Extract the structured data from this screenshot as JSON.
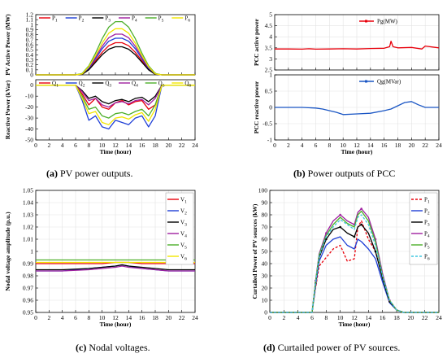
{
  "captions": [
    {
      "letter": "(a)",
      "text": " PV power outputs."
    },
    {
      "letter": "(b)",
      "text": " Power outputs of PCC"
    },
    {
      "letter": "(c)",
      "text": " Nodal voltages."
    },
    {
      "letter": "(d)",
      "text": " Curtailed power of PV sources."
    }
  ],
  "xaxis": {
    "label": "Time (hour)",
    "ticks": [
      "0",
      "2",
      "4",
      "6",
      "8",
      "10",
      "12",
      "14",
      "16",
      "18",
      "20",
      "22",
      "24"
    ]
  },
  "colors": {
    "red": "#e8000b",
    "blue": "#1f3fd6",
    "black": "#000000",
    "purple": "#a020a0",
    "green": "#4daf2a",
    "yellow": "#f2e600",
    "pcc_red": "#e8000b",
    "pcc_blue": "#1a56c4",
    "cyan": "#3fc7e0"
  },
  "chart_data": [
    {
      "id": "a_top",
      "type": "line",
      "ylabel": "PV Active Power (MW)",
      "xlim": [
        0,
        24
      ],
      "ylim": [
        0,
        1.2
      ],
      "yticks": [
        "0",
        "0.1",
        "0.2",
        "0.3",
        "0.4",
        "0.5",
        "0.6",
        "0.7",
        "0.8",
        "0.9",
        "1",
        "1.1",
        "1.2"
      ],
      "legend": [
        "P1",
        "P2",
        "P3",
        "P4",
        "P5",
        "P6"
      ],
      "x": [
        0,
        6,
        7,
        8,
        9,
        10,
        11,
        12,
        13,
        14,
        15,
        16,
        17,
        18,
        19,
        24
      ],
      "series": [
        {
          "name": "P1",
          "color": "red",
          "values": [
            0,
            0,
            0.02,
            0.12,
            0.28,
            0.45,
            0.58,
            0.64,
            0.64,
            0.58,
            0.45,
            0.28,
            0.12,
            0.02,
            0,
            0
          ]
        },
        {
          "name": "P2",
          "color": "blue",
          "values": [
            0,
            0,
            0.02,
            0.13,
            0.32,
            0.52,
            0.67,
            0.73,
            0.73,
            0.67,
            0.52,
            0.32,
            0.13,
            0.02,
            0,
            0
          ]
        },
        {
          "name": "P3",
          "color": "black",
          "values": [
            0,
            0,
            0.01,
            0.1,
            0.25,
            0.4,
            0.51,
            0.56,
            0.56,
            0.51,
            0.4,
            0.25,
            0.1,
            0.01,
            0,
            0
          ]
        },
        {
          "name": "P4",
          "color": "purple",
          "values": [
            0,
            0,
            0.02,
            0.15,
            0.35,
            0.57,
            0.74,
            0.81,
            0.81,
            0.74,
            0.57,
            0.35,
            0.15,
            0.02,
            0,
            0
          ]
        },
        {
          "name": "P5",
          "color": "green",
          "values": [
            0,
            0,
            0.03,
            0.18,
            0.43,
            0.72,
            0.95,
            1.06,
            1.06,
            0.95,
            0.72,
            0.43,
            0.18,
            0.03,
            0,
            0
          ]
        },
        {
          "name": "P6",
          "color": "yellow",
          "values": [
            0,
            0,
            0.02,
            0.16,
            0.38,
            0.63,
            0.83,
            0.92,
            0.92,
            0.83,
            0.63,
            0.38,
            0.16,
            0.02,
            0,
            0
          ]
        }
      ]
    },
    {
      "id": "a_bot",
      "type": "line",
      "ylabel": "Reactive Power (kVar)",
      "xlim": [
        0,
        24
      ],
      "ylim": [
        -50,
        5
      ],
      "yticks": [
        "-50",
        "-40",
        "-30",
        "-20",
        "-10",
        "0"
      ],
      "legend": [
        "Q1",
        "Q2",
        "Q3",
        "Q4",
        "Q5",
        "Q6"
      ],
      "x": [
        0,
        6,
        7,
        8,
        9,
        10,
        11,
        12,
        13,
        14,
        15,
        16,
        17,
        18,
        19,
        24
      ],
      "series": [
        {
          "name": "Q1",
          "color": "red",
          "values": [
            0,
            0,
            -8,
            -18,
            -12,
            -20,
            -22,
            -16,
            -14,
            -18,
            -15,
            -14,
            -22,
            -18,
            0,
            0
          ]
        },
        {
          "name": "Q2",
          "color": "blue",
          "values": [
            0,
            0,
            -14,
            -32,
            -28,
            -38,
            -40,
            -32,
            -34,
            -36,
            -30,
            -28,
            -38,
            -28,
            0,
            0
          ]
        },
        {
          "name": "Q3",
          "color": "black",
          "values": [
            0,
            0,
            -5,
            -12,
            -10,
            -15,
            -17,
            -14,
            -13,
            -15,
            -12,
            -11,
            -15,
            -10,
            0,
            0
          ]
        },
        {
          "name": "Q4",
          "color": "purple",
          "values": [
            0,
            0,
            -6,
            -14,
            -12,
            -18,
            -20,
            -16,
            -15,
            -17,
            -14,
            -13,
            -18,
            -12,
            0,
            0
          ]
        },
        {
          "name": "Q5",
          "color": "green",
          "values": [
            0,
            0,
            -10,
            -22,
            -20,
            -28,
            -30,
            -26,
            -25,
            -27,
            -24,
            -22,
            -28,
            -18,
            0,
            0
          ]
        },
        {
          "name": "Q6",
          "color": "yellow",
          "values": [
            0,
            0,
            -12,
            -26,
            -24,
            -34,
            -36,
            -30,
            -29,
            -31,
            -27,
            -25,
            -33,
            -22,
            0,
            0
          ]
        }
      ]
    },
    {
      "id": "b_top",
      "type": "line",
      "ylabel": "PCC active power",
      "xlim": [
        0,
        24
      ],
      "ylim": [
        2.5,
        5
      ],
      "yticks": [
        "2.5",
        "3",
        "3.5",
        "4",
        "4.5",
        "5"
      ],
      "legend": [
        "Pg(MW)"
      ],
      "x": [
        0,
        2,
        4,
        5,
        6,
        8,
        10,
        12,
        14,
        16,
        16.8,
        17,
        17.3,
        18,
        20,
        21.5,
        22,
        24
      ],
      "series": [
        {
          "name": "Pg(MW)",
          "color": "pcc_red",
          "values": [
            3.45,
            3.45,
            3.44,
            3.46,
            3.44,
            3.45,
            3.46,
            3.45,
            3.47,
            3.48,
            3.55,
            3.8,
            3.55,
            3.5,
            3.52,
            3.45,
            3.58,
            3.5
          ]
        }
      ]
    },
    {
      "id": "b_bot",
      "type": "line",
      "ylabel": "PCC reactive power",
      "xlim": [
        0,
        24
      ],
      "ylim": [
        -1,
        1
      ],
      "yticks": [
        "-1",
        "-0.5",
        "0",
        "0.5",
        "1"
      ],
      "legend": [
        "Qg(MVar)"
      ],
      "x": [
        0,
        4,
        6,
        7,
        8,
        9,
        10,
        12,
        14,
        16,
        17,
        18,
        19,
        20,
        21,
        22,
        24
      ],
      "series": [
        {
          "name": "Qg(MVar)",
          "color": "pcc_blue",
          "values": [
            0,
            0,
            -0.02,
            -0.05,
            -0.1,
            -0.15,
            -0.22,
            -0.2,
            -0.18,
            -0.1,
            -0.05,
            0.05,
            0.15,
            0.18,
            0.08,
            0,
            0
          ]
        }
      ]
    },
    {
      "id": "c",
      "type": "line",
      "ylabel": "Nodal voltage amplitude (p.u.)",
      "xlim": [
        0,
        24
      ],
      "ylim": [
        0.95,
        1.05
      ],
      "yticks": [
        "0.95",
        "0.96",
        "0.97",
        "0.98",
        "0.99",
        "1",
        "1.01",
        "1.02",
        "1.03",
        "1.04",
        "1.05"
      ],
      "legend": [
        "V1",
        "V2",
        "V3",
        "V4",
        "V5",
        "V6"
      ],
      "x": [
        0,
        4,
        8,
        10,
        12,
        13,
        14,
        16,
        18,
        20,
        24
      ],
      "series": [
        {
          "name": "V1",
          "color": "red",
          "values": [
            0.99,
            0.99,
            0.99,
            0.99,
            0.991,
            0.991,
            0.991,
            0.99,
            0.99,
            0.99,
            0.99
          ]
        },
        {
          "name": "V2",
          "color": "blue",
          "values": [
            0.984,
            0.984,
            0.986,
            0.987,
            0.988,
            0.989,
            0.988,
            0.986,
            0.985,
            0.984,
            0.984
          ]
        },
        {
          "name": "V3",
          "color": "black",
          "values": [
            0.985,
            0.985,
            0.986,
            0.987,
            0.988,
            0.989,
            0.988,
            0.987,
            0.986,
            0.985,
            0.985
          ]
        },
        {
          "name": "V4",
          "color": "purple",
          "values": [
            0.984,
            0.984,
            0.985,
            0.986,
            0.987,
            0.988,
            0.987,
            0.986,
            0.985,
            0.984,
            0.984
          ]
        },
        {
          "name": "V5",
          "color": "green",
          "values": [
            0.993,
            0.993,
            0.993,
            0.993,
            0.993,
            0.993,
            0.993,
            0.993,
            0.993,
            0.993,
            0.993
          ]
        },
        {
          "name": "V6",
          "color": "yellow",
          "values": [
            0.991,
            0.991,
            0.991,
            0.991,
            0.991,
            0.991,
            0.991,
            0.991,
            0.991,
            0.991,
            0.991
          ]
        }
      ]
    },
    {
      "id": "d",
      "type": "line",
      "ylabel": "Curtailed Power of PV sources (kW)",
      "xlim": [
        0,
        24
      ],
      "ylim": [
        0,
        100
      ],
      "yticks": [
        "0",
        "10",
        "20",
        "30",
        "40",
        "50",
        "60",
        "70",
        "80",
        "90",
        "100"
      ],
      "legend": [
        "P1",
        "P2",
        "P3",
        "P4",
        "P5",
        "P6"
      ],
      "x": [
        0,
        6,
        6.5,
        7,
        8,
        9,
        10,
        11,
        12,
        12.5,
        13,
        14,
        15,
        16,
        17,
        18,
        19,
        24
      ],
      "series": [
        {
          "name": "P1",
          "color": "red",
          "dash": true,
          "values": [
            0,
            0,
            20,
            38,
            45,
            52,
            55,
            42,
            44,
            70,
            75,
            60,
            50,
            30,
            10,
            2,
            0,
            0
          ]
        },
        {
          "name": "P2",
          "color": "blue",
          "values": [
            0,
            0,
            22,
            42,
            55,
            60,
            62,
            55,
            52,
            60,
            58,
            52,
            44,
            25,
            8,
            2,
            0,
            0
          ]
        },
        {
          "name": "P3",
          "color": "black",
          "values": [
            0,
            0,
            24,
            45,
            60,
            68,
            70,
            65,
            62,
            70,
            72,
            65,
            50,
            28,
            9,
            2,
            0,
            0
          ]
        },
        {
          "name": "P4",
          "color": "purple",
          "values": [
            0,
            0,
            26,
            48,
            65,
            75,
            80,
            75,
            72,
            82,
            85,
            78,
            60,
            32,
            10,
            2,
            0,
            0
          ]
        },
        {
          "name": "P5",
          "color": "green",
          "values": [
            0,
            0,
            25,
            47,
            63,
            72,
            78,
            73,
            70,
            80,
            83,
            75,
            58,
            30,
            10,
            2,
            0,
            0
          ]
        },
        {
          "name": "P6",
          "color": "cyan",
          "dash": true,
          "values": [
            0,
            0,
            24,
            46,
            62,
            70,
            76,
            72,
            68,
            78,
            80,
            72,
            55,
            30,
            10,
            2,
            0,
            0
          ]
        }
      ]
    }
  ]
}
